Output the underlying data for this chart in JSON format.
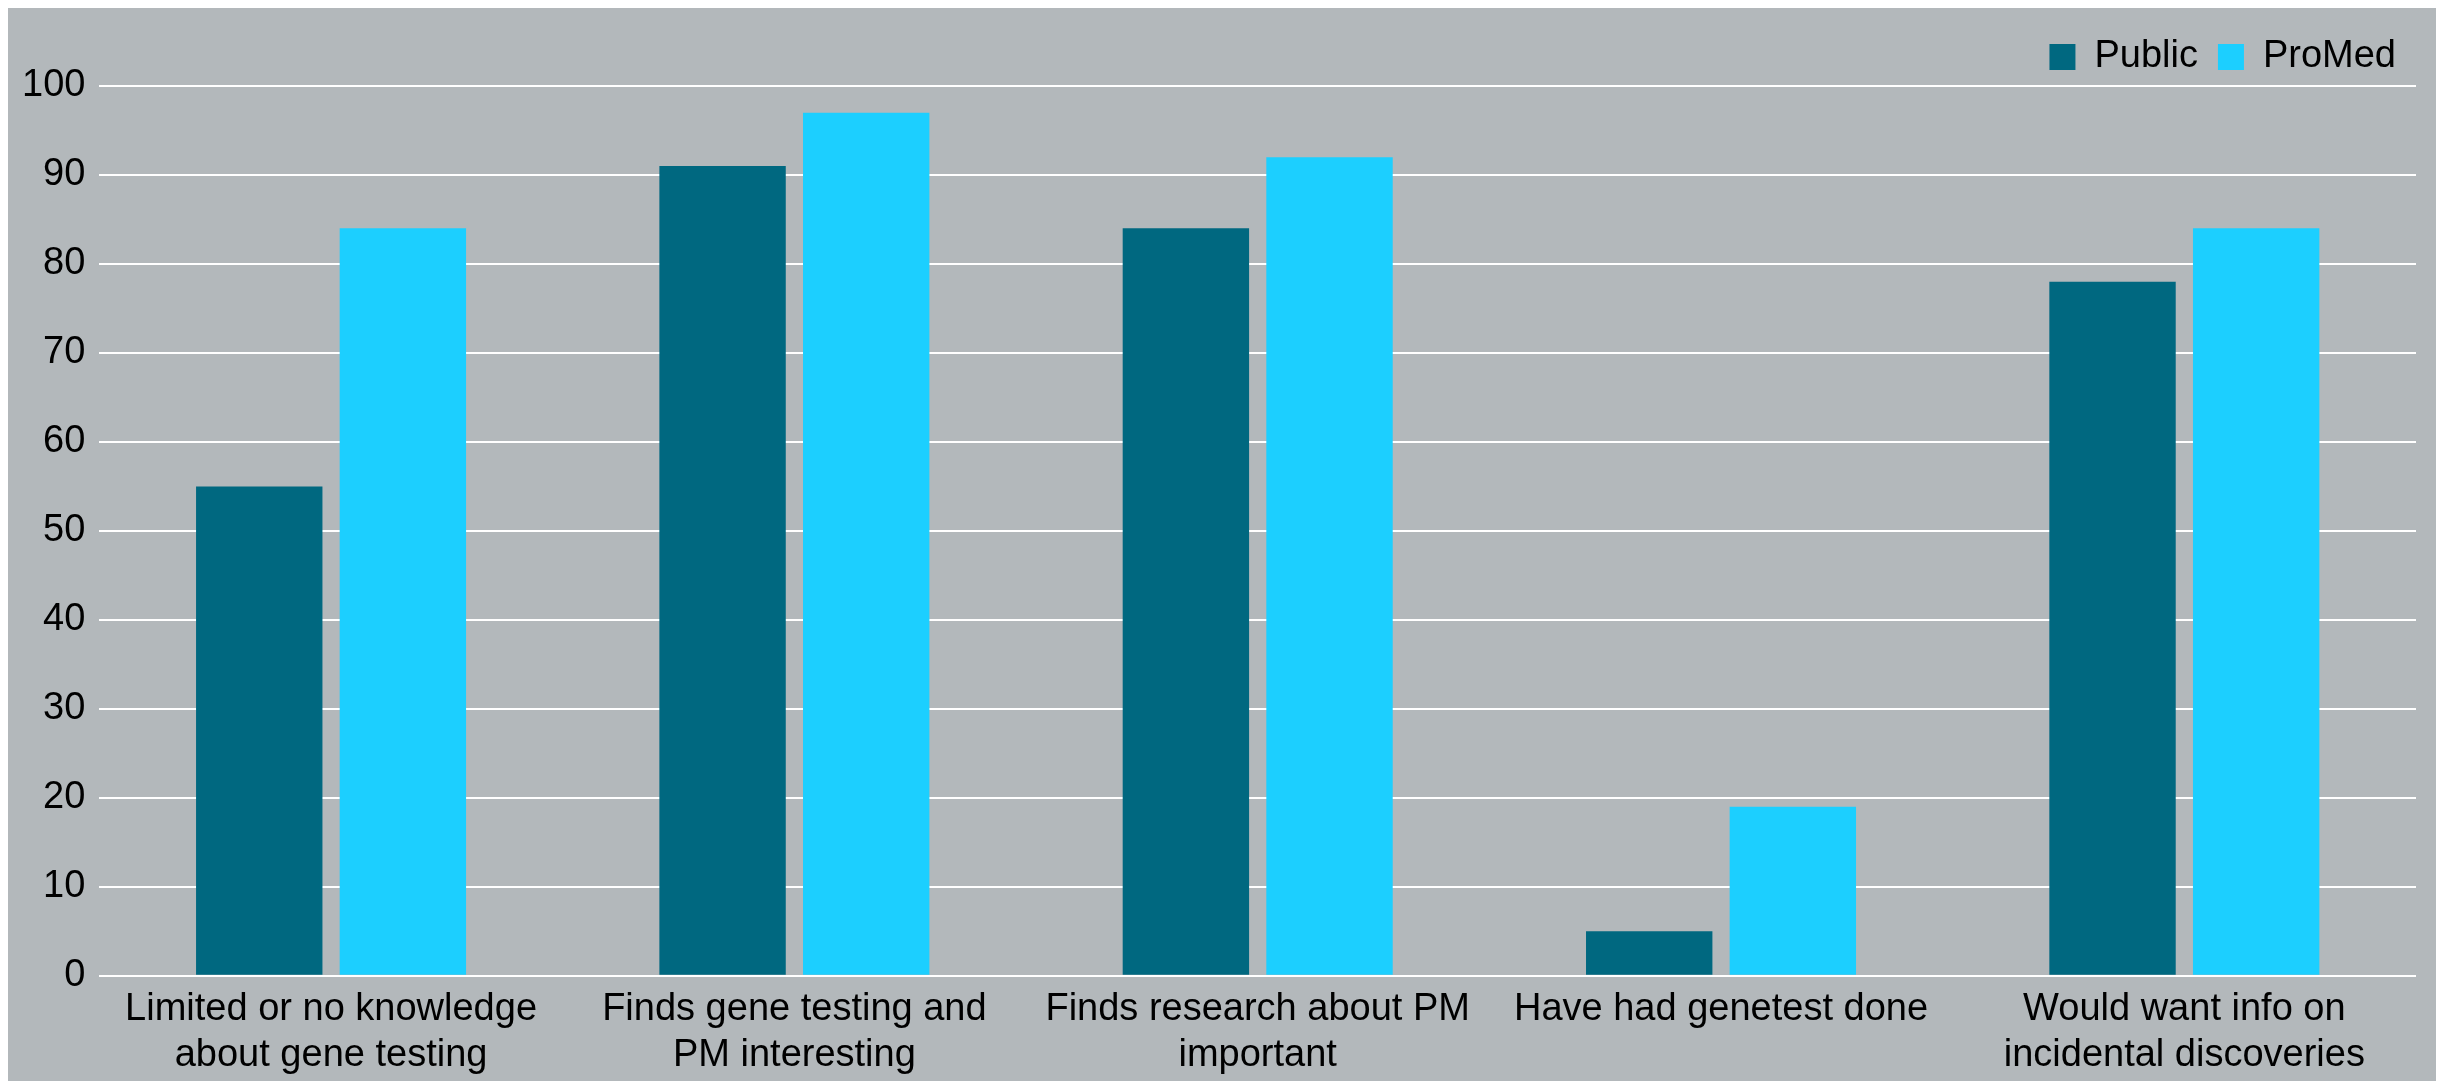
{
  "chart_data": {
    "type": "bar",
    "categories": [
      "Limited or no knowledge about gene testing",
      "Finds gene testing and PM interesting",
      "Finds research about PM important",
      "Have had genetest done",
      "Would want info on incidental discoveries"
    ],
    "series": [
      {
        "name": "Public",
        "color": "#006880",
        "values": [
          55,
          91,
          84,
          5,
          78
        ]
      },
      {
        "name": "ProMed",
        "color": "#1ccfff",
        "values": [
          84,
          97,
          92,
          19,
          84
        ]
      }
    ],
    "ylim": [
      0,
      100
    ],
    "yticks": [
      0,
      10,
      20,
      30,
      40,
      50,
      60,
      70,
      80,
      90,
      100
    ],
    "grid": "y",
    "legend": "top right"
  }
}
